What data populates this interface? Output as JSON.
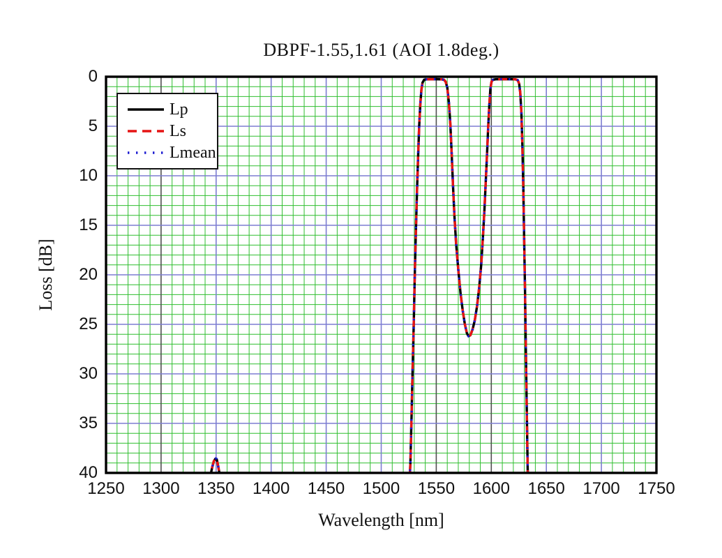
{
  "colors": {
    "background": "#ffffff",
    "frame": "#000000",
    "grid_major": "#7d7dd2",
    "grid_major_dark": "#4f4f4f",
    "grid_minor": "#2fbe2f",
    "text": "#111111"
  },
  "legend": {
    "border_color": "#111111"
  },
  "chart_data": {
    "type": "line",
    "title": "DBPF-1.55,1.61  (AOI 1.8deg.)",
    "xlabel": "Wavelength [nm]",
    "ylabel": "Loss [dB]",
    "x_axis": {
      "min": 1250,
      "max": 1750,
      "major_step": 50,
      "minor_step": 10,
      "tick_labels": [
        "1250",
        "1300",
        "1350",
        "1400",
        "1450",
        "1500",
        "1550",
        "1600",
        "1650",
        "1700",
        "1750"
      ],
      "dark_major_lines_at": [
        1300,
        1550,
        1600
      ]
    },
    "y_axis": {
      "min": 0,
      "max": 40,
      "major_step": 5,
      "minor_step": 1,
      "inverted": true,
      "tick_labels": [
        "0",
        "5",
        "10",
        "15",
        "20",
        "25",
        "30",
        "35",
        "40"
      ]
    },
    "grid": {
      "majors": "blue-violet",
      "minors": "green",
      "visible": true
    },
    "legend_position": "upper-left-inside",
    "series": [
      {
        "name": "Lp",
        "color": "#000000",
        "style": "solid"
      },
      {
        "name": "Ls",
        "color": "#e51414",
        "style": "dashed"
      },
      {
        "name": "Lmean",
        "color": "#1b1bd1",
        "style": "dotted"
      }
    ],
    "overlap_note": "Lp, Ls and Lmean curves coincide; shared curve points below (wavelength nm, loss dB)",
    "curve_segments": [
      {
        "name": "stopband-leak-1350",
        "points": [
          [
            1343.5,
            41
          ],
          [
            1345,
            40.2
          ],
          [
            1346.5,
            39.4
          ],
          [
            1348,
            38.8
          ],
          [
            1349.5,
            38.55
          ],
          [
            1350.5,
            38.6
          ],
          [
            1351.5,
            39.1
          ],
          [
            1353,
            40
          ],
          [
            1354.5,
            41
          ]
        ]
      },
      {
        "name": "dual-passband",
        "points": [
          [
            1525.5,
            41.5
          ],
          [
            1526.5,
            39
          ],
          [
            1527.5,
            34.5
          ],
          [
            1528.5,
            29.5
          ],
          [
            1529.5,
            25
          ],
          [
            1530.5,
            20
          ],
          [
            1531.5,
            15.5
          ],
          [
            1532.5,
            11.5
          ],
          [
            1533.5,
            8
          ],
          [
            1534.5,
            5
          ],
          [
            1535.5,
            2.8
          ],
          [
            1536.5,
            1.3
          ],
          [
            1537.5,
            0.6
          ],
          [
            1539,
            0.3
          ],
          [
            1541,
            0.27
          ],
          [
            1545,
            0.25
          ],
          [
            1550,
            0.25
          ],
          [
            1555,
            0.27
          ],
          [
            1557,
            0.3
          ],
          [
            1558.5,
            0.5
          ],
          [
            1560,
            1.1
          ],
          [
            1561.5,
            2.6
          ],
          [
            1562.8,
            4.8
          ],
          [
            1564,
            7.8
          ],
          [
            1565.2,
            11
          ],
          [
            1566.5,
            14
          ],
          [
            1568,
            16.8
          ],
          [
            1570,
            19.5
          ],
          [
            1572,
            21.8
          ],
          [
            1574,
            23.6
          ],
          [
            1576,
            25
          ],
          [
            1577.8,
            25.9
          ],
          [
            1579.3,
            26.2
          ],
          [
            1581,
            26.1
          ],
          [
            1583,
            25.5
          ],
          [
            1585,
            24.6
          ],
          [
            1587,
            23.2
          ],
          [
            1589,
            21.3
          ],
          [
            1590.8,
            19
          ],
          [
            1592.3,
            16.4
          ],
          [
            1593.8,
            13.4
          ],
          [
            1595,
            10.5
          ],
          [
            1596.2,
            7.6
          ],
          [
            1597.2,
            5
          ],
          [
            1598.2,
            2.8
          ],
          [
            1599.2,
            1.2
          ],
          [
            1600.2,
            0.5
          ],
          [
            1601.5,
            0.3
          ],
          [
            1604,
            0.26
          ],
          [
            1610,
            0.25
          ],
          [
            1617,
            0.25
          ],
          [
            1622,
            0.27
          ],
          [
            1624,
            0.35
          ],
          [
            1625.3,
            0.7
          ],
          [
            1626.3,
            1.6
          ],
          [
            1627.3,
            3.6
          ],
          [
            1628.2,
            6.8
          ],
          [
            1629,
            11
          ],
          [
            1629.8,
            16
          ],
          [
            1630.6,
            21.5
          ],
          [
            1631.4,
            27.5
          ],
          [
            1632.2,
            33.5
          ],
          [
            1633,
            39.5
          ],
          [
            1633.6,
            42
          ]
        ]
      }
    ],
    "passbands_summary": {
      "band1_flat_nm": [
        1537,
        1558
      ],
      "band2_flat_nm": [
        1600,
        1624
      ],
      "flat_top_loss_db": 0.25,
      "inter_band_dip_db": 26.2,
      "dip_center_nm": 1579
    }
  }
}
